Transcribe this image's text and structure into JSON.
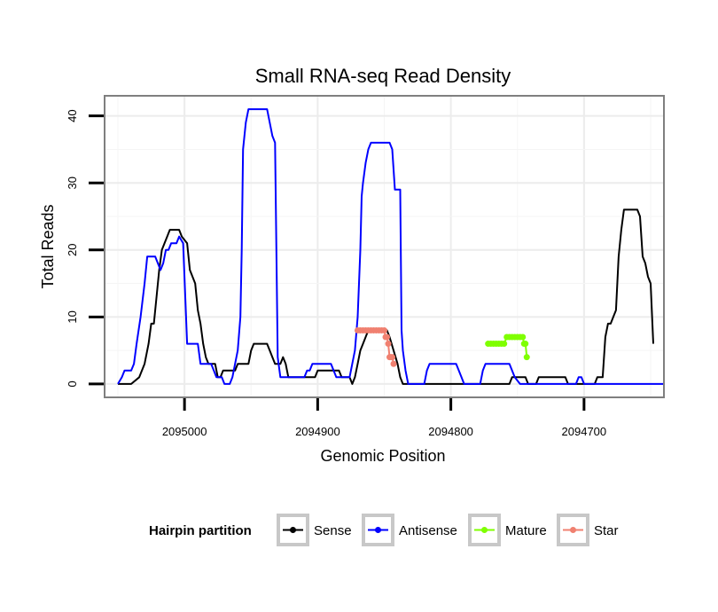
{
  "chart_data": {
    "type": "line",
    "title": "Small RNA-seq Read Density",
    "xlabel": "Genomic Position",
    "ylabel": "Total Reads",
    "xlim": [
      2095060,
      2094640
    ],
    "ylim": [
      -2,
      43
    ],
    "x_reversed": true,
    "x_ticks": [
      2095000,
      2094900,
      2094800,
      2094700
    ],
    "x_tick_labels": [
      "2095000",
      "2094900",
      "2094800",
      "2094700"
    ],
    "y_ticks": [
      0,
      10,
      20,
      30,
      40
    ],
    "y_tick_labels": [
      "0",
      "10",
      "20",
      "30",
      "40"
    ],
    "grid": true,
    "legend": {
      "title": "Hairpin partition",
      "position": "bottom",
      "entries": [
        {
          "label": "Sense",
          "color": "#000000"
        },
        {
          "label": "Antisense",
          "color": "#0000ff"
        },
        {
          "label": "Mature",
          "color": "#7fff00"
        },
        {
          "label": "Star",
          "color": "#f08070"
        }
      ]
    },
    "series": [
      {
        "name": "Sense",
        "color": "#000000",
        "points": [
          [
            2095050,
            0
          ],
          [
            2095040,
            0
          ],
          [
            2095034,
            1
          ],
          [
            2095030,
            3
          ],
          [
            2095027,
            6
          ],
          [
            2095025,
            9
          ],
          [
            2095023,
            9
          ],
          [
            2095021,
            13
          ],
          [
            2095019,
            17
          ],
          [
            2095017,
            20
          ],
          [
            2095015,
            21
          ],
          [
            2095013,
            22
          ],
          [
            2095011,
            23
          ],
          [
            2095004,
            23
          ],
          [
            2095002,
            22
          ],
          [
            2094998,
            21
          ],
          [
            2094996,
            17
          ],
          [
            2094994,
            16
          ],
          [
            2094992,
            15
          ],
          [
            2094990,
            11
          ],
          [
            2094988,
            9
          ],
          [
            2094986,
            6
          ],
          [
            2094984,
            4
          ],
          [
            2094982,
            3
          ],
          [
            2094977,
            3
          ],
          [
            2094975,
            1
          ],
          [
            2094973,
            1
          ],
          [
            2094971,
            2
          ],
          [
            2094962,
            2
          ],
          [
            2094960,
            3
          ],
          [
            2094952,
            3
          ],
          [
            2094950,
            5
          ],
          [
            2094948,
            6
          ],
          [
            2094938,
            6
          ],
          [
            2094936,
            5
          ],
          [
            2094934,
            4
          ],
          [
            2094932,
            3
          ],
          [
            2094928,
            3
          ],
          [
            2094926,
            4
          ],
          [
            2094924,
            3
          ],
          [
            2094922,
            1
          ],
          [
            2094902,
            1
          ],
          [
            2094900,
            2
          ],
          [
            2094884,
            2
          ],
          [
            2094882,
            1
          ],
          [
            2094876,
            1
          ],
          [
            2094874,
            0
          ],
          [
            2094872,
            1
          ],
          [
            2094870,
            3
          ],
          [
            2094868,
            5
          ],
          [
            2094866,
            6
          ],
          [
            2094862,
            8
          ],
          [
            2094848,
            8
          ],
          [
            2094846,
            7
          ],
          [
            2094840,
            3
          ],
          [
            2094838,
            1
          ],
          [
            2094836,
            0
          ],
          [
            2094756,
            0
          ],
          [
            2094754,
            1
          ],
          [
            2094744,
            1
          ],
          [
            2094742,
            0
          ],
          [
            2094736,
            0
          ],
          [
            2094734,
            1
          ],
          [
            2094714,
            1
          ],
          [
            2094712,
            0
          ],
          [
            2094692,
            0
          ],
          [
            2094690,
            1
          ],
          [
            2094686,
            1
          ],
          [
            2094684,
            7
          ],
          [
            2094682,
            9
          ],
          [
            2094680,
            9
          ],
          [
            2094678,
            10
          ],
          [
            2094676,
            11
          ],
          [
            2094674,
            19
          ],
          [
            2094672,
            23
          ],
          [
            2094670,
            26
          ],
          [
            2094660,
            26
          ],
          [
            2094658,
            25
          ],
          [
            2094656,
            19
          ],
          [
            2094654,
            18
          ],
          [
            2094652,
            16
          ],
          [
            2094650,
            15
          ],
          [
            2094648,
            6
          ]
        ]
      },
      {
        "name": "Antisense",
        "color": "#0000ff",
        "points": [
          [
            2095050,
            0
          ],
          [
            2095047,
            1
          ],
          [
            2095045,
            2
          ],
          [
            2095040,
            2
          ],
          [
            2095038,
            3
          ],
          [
            2095036,
            6
          ],
          [
            2095033,
            10
          ],
          [
            2095030,
            15
          ],
          [
            2095028,
            19
          ],
          [
            2095022,
            19
          ],
          [
            2095020,
            18
          ],
          [
            2095018,
            17
          ],
          [
            2095016,
            18
          ],
          [
            2095014,
            20
          ],
          [
            2095012,
            20
          ],
          [
            2095010,
            21
          ],
          [
            2095006,
            21
          ],
          [
            2095004,
            22
          ],
          [
            2095001,
            21
          ],
          [
            2094999,
            11
          ],
          [
            2094998,
            6
          ],
          [
            2094990,
            6
          ],
          [
            2094988,
            3
          ],
          [
            2094980,
            3
          ],
          [
            2094978,
            2
          ],
          [
            2094976,
            1
          ],
          [
            2094972,
            1
          ],
          [
            2094970,
            0
          ],
          [
            2094966,
            0
          ],
          [
            2094964,
            1
          ],
          [
            2094962,
            3
          ],
          [
            2094960,
            5
          ],
          [
            2094958,
            10
          ],
          [
            2094957,
            20
          ],
          [
            2094956,
            35
          ],
          [
            2094954,
            39
          ],
          [
            2094952,
            41
          ],
          [
            2094938,
            41
          ],
          [
            2094936,
            39
          ],
          [
            2094934,
            37
          ],
          [
            2094932,
            36
          ],
          [
            2094931,
            20
          ],
          [
            2094930,
            4
          ],
          [
            2094928,
            1
          ],
          [
            2094918,
            1
          ],
          [
            2094916,
            1
          ],
          [
            2094910,
            1
          ],
          [
            2094908,
            2
          ],
          [
            2094906,
            2
          ],
          [
            2094904,
            3
          ],
          [
            2094890,
            3
          ],
          [
            2094888,
            2
          ],
          [
            2094886,
            1
          ],
          [
            2094876,
            1
          ],
          [
            2094874,
            3
          ],
          [
            2094872,
            5
          ],
          [
            2094870,
            10
          ],
          [
            2094868,
            20
          ],
          [
            2094867,
            28
          ],
          [
            2094866,
            30
          ],
          [
            2094864,
            33
          ],
          [
            2094862,
            35
          ],
          [
            2094860,
            36
          ],
          [
            2094846,
            36
          ],
          [
            2094844,
            35
          ],
          [
            2094842,
            29
          ],
          [
            2094838,
            29
          ],
          [
            2094837,
            8
          ],
          [
            2094836,
            5
          ],
          [
            2094834,
            2
          ],
          [
            2094832,
            0
          ],
          [
            2094820,
            0
          ],
          [
            2094818,
            2
          ],
          [
            2094816,
            3
          ],
          [
            2094796,
            3
          ],
          [
            2094794,
            2
          ],
          [
            2094792,
            1
          ],
          [
            2094790,
            0
          ],
          [
            2094778,
            0
          ],
          [
            2094776,
            2
          ],
          [
            2094774,
            3
          ],
          [
            2094756,
            3
          ],
          [
            2094754,
            2
          ],
          [
            2094752,
            1
          ],
          [
            2094748,
            0
          ],
          [
            2094706,
            0
          ],
          [
            2094704,
            1
          ],
          [
            2094702,
            1
          ],
          [
            2094700,
            0
          ],
          [
            2094640,
            0
          ]
        ]
      },
      {
        "name": "Mature",
        "color": "#7fff00",
        "points": [
          [
            2094772,
            6
          ],
          [
            2094770,
            6
          ],
          [
            2094768,
            6
          ],
          [
            2094766,
            6
          ],
          [
            2094764,
            6
          ],
          [
            2094762,
            6
          ],
          [
            2094760,
            6
          ],
          [
            2094758,
            7
          ],
          [
            2094756,
            7
          ],
          [
            2094754,
            7
          ],
          [
            2094752,
            7
          ],
          [
            2094750,
            7
          ],
          [
            2094748,
            7
          ],
          [
            2094746,
            7
          ],
          [
            2094745,
            6
          ],
          [
            2094744,
            6
          ],
          [
            2094743,
            4
          ]
        ]
      },
      {
        "name": "Star",
        "color": "#f08070",
        "points": [
          [
            2094870,
            8
          ],
          [
            2094868,
            8
          ],
          [
            2094866,
            8
          ],
          [
            2094864,
            8
          ],
          [
            2094862,
            8
          ],
          [
            2094860,
            8
          ],
          [
            2094858,
            8
          ],
          [
            2094856,
            8
          ],
          [
            2094854,
            8
          ],
          [
            2094852,
            8
          ],
          [
            2094850,
            8
          ],
          [
            2094849,
            7
          ],
          [
            2094848,
            7
          ],
          [
            2094847,
            6
          ],
          [
            2094846,
            4
          ],
          [
            2094845,
            4
          ],
          [
            2094844,
            4
          ],
          [
            2094843,
            3
          ]
        ]
      }
    ]
  }
}
